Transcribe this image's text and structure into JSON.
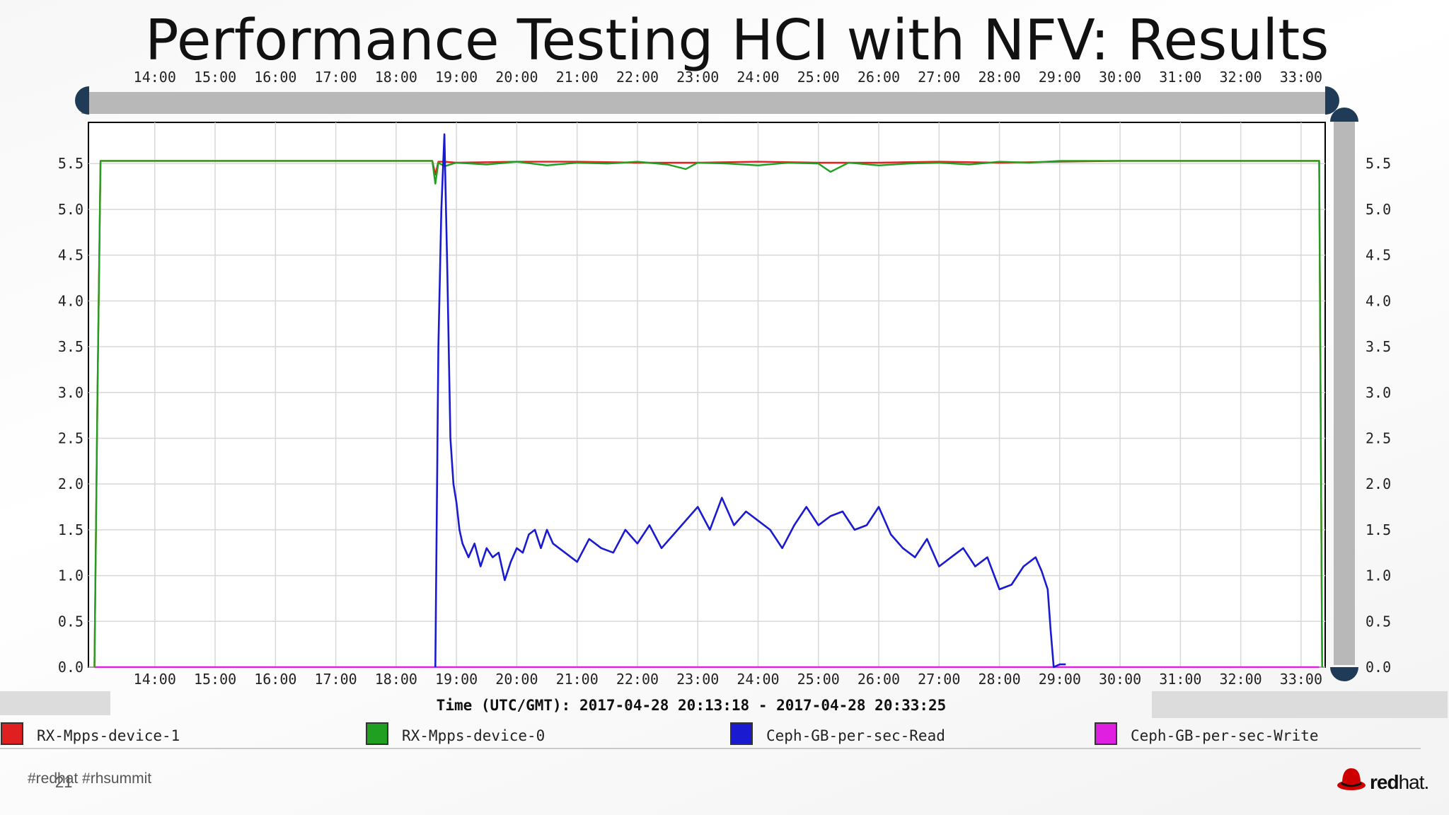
{
  "slide": {
    "title": "Performance Testing HCI with NFV: Results",
    "footer_tags": "#redhat #rhsummit",
    "page_number": "21",
    "logo_text_bold": "red",
    "logo_text_rest": "hat."
  },
  "chart_data": {
    "type": "line",
    "title": "",
    "xlabel": "Time (UTC/GMT): 2017-04-28 20:13:18 - 2017-04-28 20:33:25",
    "ylabel": "",
    "x_tick_labels": [
      "14:00",
      "15:00",
      "16:00",
      "17:00",
      "18:00",
      "19:00",
      "20:00",
      "21:00",
      "22:00",
      "23:00",
      "24:00",
      "25:00",
      "26:00",
      "27:00",
      "28:00",
      "29:00",
      "30:00",
      "31:00",
      "32:00",
      "33:00"
    ],
    "x_ticks": [
      14,
      15,
      16,
      17,
      18,
      19,
      20,
      21,
      22,
      23,
      24,
      25,
      26,
      27,
      28,
      29,
      30,
      31,
      32,
      33
    ],
    "xlim": [
      12.9,
      33.4
    ],
    "y_tick_labels": [
      "0.0",
      "0.5",
      "1.0",
      "1.5",
      "2.0",
      "2.5",
      "3.0",
      "3.5",
      "4.0",
      "4.5",
      "5.0",
      "5.5"
    ],
    "y_ticks": [
      0,
      0.5,
      1,
      1.5,
      2,
      2.5,
      3,
      3.5,
      4,
      4.5,
      5,
      5.5
    ],
    "ylim": [
      0,
      5.95
    ],
    "grid": true,
    "legend_position": "bottom",
    "series": [
      {
        "name": "RX-Mpps-device-1",
        "color": "#e02020",
        "x": [
          13.0,
          13.05,
          13.1,
          18.6,
          18.65,
          18.7,
          18.8,
          19.0,
          20.0,
          21.0,
          22.0,
          23.0,
          24.0,
          25.0,
          26.0,
          27.0,
          28.0,
          29.0,
          30.0,
          31.0,
          32.0,
          33.0,
          33.3,
          33.35
        ],
        "y": [
          0,
          3.0,
          5.53,
          5.53,
          5.38,
          5.52,
          5.52,
          5.51,
          5.52,
          5.52,
          5.51,
          5.51,
          5.52,
          5.51,
          5.51,
          5.52,
          5.51,
          5.52,
          5.53,
          5.53,
          5.53,
          5.53,
          5.53,
          0
        ]
      },
      {
        "name": "RX-Mpps-device-0",
        "color": "#20a020",
        "x": [
          13.0,
          13.05,
          13.1,
          18.6,
          18.65,
          18.7,
          18.8,
          19.0,
          19.5,
          20.0,
          20.5,
          21.0,
          21.5,
          22.0,
          22.5,
          22.8,
          23.0,
          23.5,
          24.0,
          24.5,
          25.0,
          25.2,
          25.5,
          26.0,
          26.5,
          27.0,
          27.5,
          28.0,
          28.5,
          29.0,
          30.0,
          31.0,
          32.0,
          33.0,
          33.3,
          33.35
        ],
        "y": [
          0,
          3.0,
          5.53,
          5.53,
          5.28,
          5.51,
          5.47,
          5.51,
          5.49,
          5.52,
          5.48,
          5.51,
          5.5,
          5.52,
          5.49,
          5.44,
          5.51,
          5.5,
          5.48,
          5.51,
          5.5,
          5.41,
          5.51,
          5.48,
          5.5,
          5.51,
          5.49,
          5.52,
          5.51,
          5.53,
          5.53,
          5.53,
          5.53,
          5.53,
          5.53,
          0
        ]
      },
      {
        "name": "Ceph-GB-per-sec-Read",
        "color": "#1a1ad0",
        "x": [
          18.65,
          18.7,
          18.75,
          18.8,
          18.85,
          18.9,
          18.95,
          19.0,
          19.05,
          19.1,
          19.2,
          19.3,
          19.4,
          19.5,
          19.6,
          19.7,
          19.8,
          19.9,
          20.0,
          20.1,
          20.2,
          20.3,
          20.4,
          20.5,
          20.6,
          20.8,
          21.0,
          21.2,
          21.4,
          21.6,
          21.8,
          22.0,
          22.2,
          22.4,
          22.6,
          22.8,
          23.0,
          23.2,
          23.4,
          23.6,
          23.8,
          24.0,
          24.2,
          24.4,
          24.6,
          24.8,
          25.0,
          25.2,
          25.4,
          25.6,
          25.8,
          26.0,
          26.2,
          26.4,
          26.6,
          26.8,
          27.0,
          27.2,
          27.4,
          27.6,
          27.8,
          28.0,
          28.2,
          28.4,
          28.6,
          28.7,
          28.8,
          28.85,
          28.9,
          29.0,
          29.1
        ],
        "y": [
          0,
          3.5,
          5.0,
          5.82,
          4.3,
          2.5,
          2.0,
          1.8,
          1.5,
          1.35,
          1.2,
          1.35,
          1.1,
          1.3,
          1.2,
          1.25,
          0.95,
          1.15,
          1.3,
          1.25,
          1.45,
          1.5,
          1.3,
          1.5,
          1.35,
          1.25,
          1.15,
          1.4,
          1.3,
          1.25,
          1.5,
          1.35,
          1.55,
          1.3,
          1.45,
          1.6,
          1.75,
          1.5,
          1.85,
          1.55,
          1.7,
          1.6,
          1.5,
          1.3,
          1.55,
          1.75,
          1.55,
          1.65,
          1.7,
          1.5,
          1.55,
          1.75,
          1.45,
          1.3,
          1.2,
          1.4,
          1.1,
          1.2,
          1.3,
          1.1,
          1.2,
          0.85,
          0.9,
          1.1,
          1.2,
          1.05,
          0.85,
          0.4,
          0.0,
          0.03,
          0.03
        ]
      },
      {
        "name": "Ceph-GB-per-sec-Write",
        "color": "#e020e0",
        "x": [
          13.0,
          33.3
        ],
        "y": [
          0,
          0
        ]
      }
    ]
  }
}
